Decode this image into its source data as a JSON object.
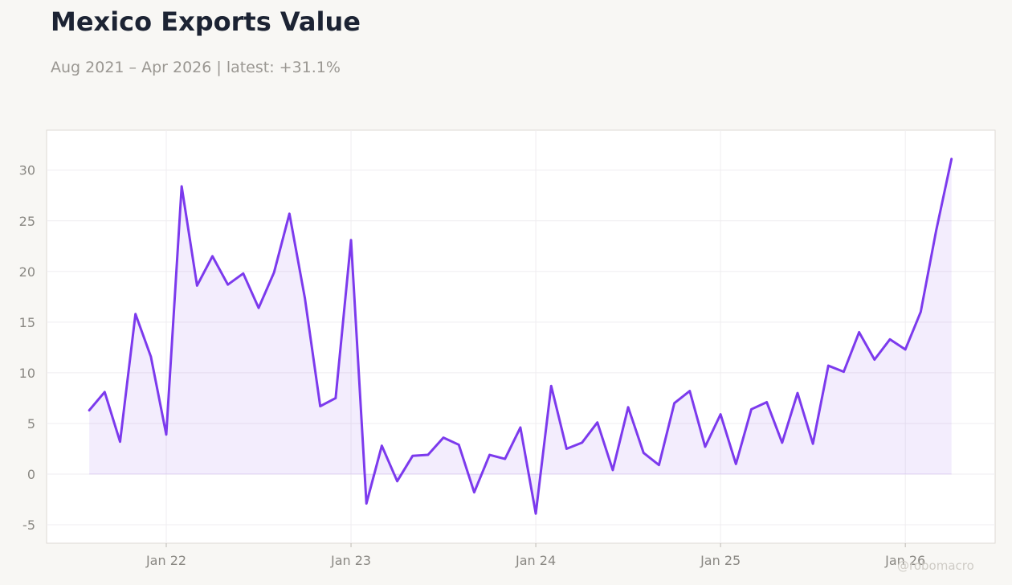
{
  "header": {
    "title": "Mexico Exports Value",
    "subtitle": "Aug 2021 – Apr 2026 | latest: +31.1%"
  },
  "watermark": "@robomacro",
  "colors": {
    "line": "#7c3aed",
    "fill": "#7c3aed",
    "background": "#f8f7f4",
    "plot_background": "#ffffff",
    "grid": "#efedf0"
  },
  "chart_data": {
    "type": "area",
    "x": [
      "2021-08",
      "2021-09",
      "2021-10",
      "2021-11",
      "2021-12",
      "2022-01",
      "2022-02",
      "2022-03",
      "2022-04",
      "2022-05",
      "2022-06",
      "2022-07",
      "2022-08",
      "2022-09",
      "2022-10",
      "2022-11",
      "2022-12",
      "2023-01",
      "2023-02",
      "2023-03",
      "2023-04",
      "2023-05",
      "2023-06",
      "2023-07",
      "2023-08",
      "2023-09",
      "2023-10",
      "2023-11",
      "2023-12",
      "2024-01",
      "2024-02",
      "2024-03",
      "2024-04",
      "2024-05",
      "2024-06",
      "2024-07",
      "2024-08",
      "2024-09",
      "2024-10",
      "2024-11",
      "2024-12",
      "2025-01",
      "2025-02",
      "2025-03",
      "2025-04",
      "2025-05",
      "2025-06",
      "2025-07",
      "2025-08",
      "2025-09",
      "2025-10",
      "2025-11",
      "2025-12",
      "2026-01",
      "2026-02",
      "2026-03",
      "2026-04"
    ],
    "values": [
      6.3,
      8.1,
      3.2,
      15.8,
      11.6,
      3.9,
      28.4,
      18.6,
      21.5,
      18.7,
      19.8,
      16.4,
      19.9,
      25.7,
      17.4,
      6.7,
      7.5,
      23.1,
      -2.9,
      2.8,
      -0.7,
      1.8,
      1.9,
      3.6,
      2.9,
      -1.8,
      1.9,
      1.5,
      4.6,
      -3.9,
      8.7,
      2.5,
      3.1,
      5.1,
      0.4,
      6.6,
      2.1,
      0.9,
      7.0,
      8.2,
      2.7,
      5.9,
      1.0,
      6.4,
      7.1,
      3.1,
      8.0,
      3.0,
      10.7,
      10.1,
      14.0,
      11.3,
      13.3,
      12.3,
      16.0,
      24.0,
      31.1
    ],
    "ylim": [
      -7,
      33.5
    ],
    "yticks": [
      -5,
      0,
      5,
      10,
      15,
      20,
      25,
      30
    ],
    "xtick_dates": [
      "2022-01",
      "2023-01",
      "2024-01",
      "2025-01",
      "2026-01"
    ],
    "xtick_labels": [
      "Jan 22",
      "Jan 23",
      "Jan 24",
      "Jan 25",
      "Jan 26"
    ],
    "grid": true,
    "xlabel": "",
    "ylabel": ""
  }
}
